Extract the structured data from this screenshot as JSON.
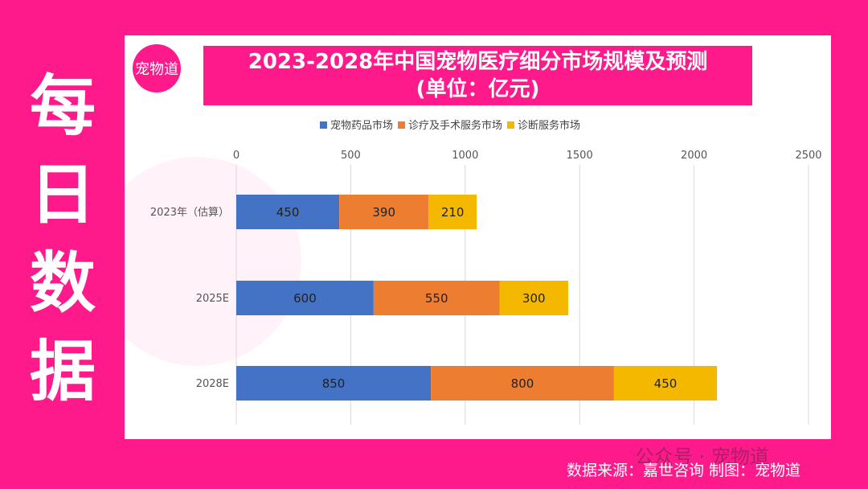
{
  "side_title": [
    "每",
    "日",
    "数",
    "据"
  ],
  "logo_text": "宠物道",
  "title_line1": "2023-2028年中国宠物医疗细分市场规模及预测",
  "title_line2": "(单位：亿元)",
  "watermark": "公众号 · 宠物道",
  "source": "数据来源：嘉世咨询   制图：宠物道",
  "chart_data": {
    "type": "bar",
    "orientation": "horizontal",
    "stacked": true,
    "categories": [
      "2023年（估算）",
      "2025E",
      "2028E"
    ],
    "series": [
      {
        "name": "宠物药品市场",
        "values": [
          450,
          600,
          850
        ],
        "color": "#4472c4"
      },
      {
        "name": "诊疗及手术服务市场",
        "values": [
          390,
          550,
          800
        ],
        "color": "#ed7d31"
      },
      {
        "name": "诊断服务市场",
        "values": [
          210,
          300,
          450
        ],
        "color": "#f5b800"
      }
    ],
    "xlim": [
      0,
      2500
    ],
    "xticks": [
      0,
      500,
      1000,
      1500,
      2000,
      2500
    ],
    "xaxis_position": "top",
    "grid": true,
    "legend": "top"
  }
}
